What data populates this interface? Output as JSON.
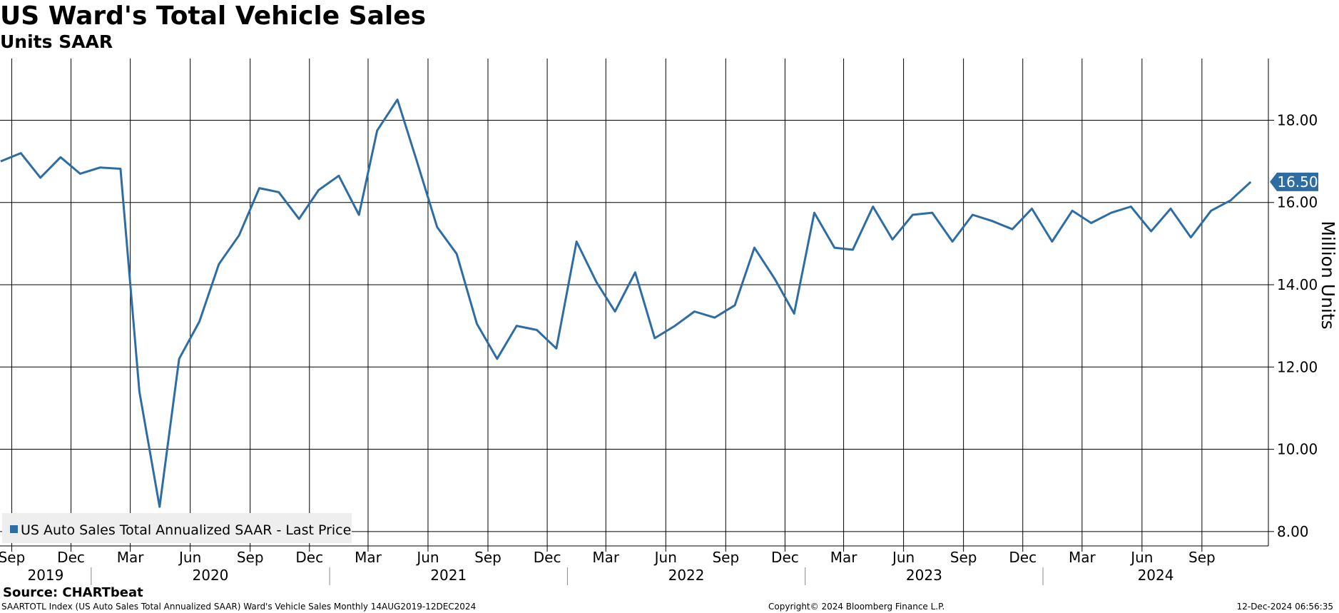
{
  "footer": {
    "source": "Source: CHARTbeat",
    "description": "SAARTOTL Index (US Auto Sales Total Annualized SAAR) Ward's Vehicle Sales  Monthly 14AUG2019-12DEC2024",
    "copyright": "Copyright© 2024 Bloomberg Finance L.P.",
    "timestamp": "12-Dec-2024 06:56:35"
  },
  "colors": {
    "series": "#2e6da4",
    "grid": "#000000",
    "background": "#ffffff",
    "legend_bg": "#eeeeee",
    "last_value_label": "#2e6da4"
  },
  "chart_data": {
    "type": "line",
    "title": "US Ward's Total Vehicle Sales",
    "subtitle": "Units SAAR",
    "ylabel": "Million Units",
    "ylim": [
      7.65,
      19.5
    ],
    "xlim": [
      "2019-08-14",
      "2024-12-12"
    ],
    "yticks": [
      8.0,
      10.0,
      12.0,
      14.0,
      16.0,
      18.0
    ],
    "ytick_labels": [
      "8.00",
      "10.00",
      "12.00",
      "14.00",
      "16.00",
      "18.00"
    ],
    "y_axis_position": "right",
    "grid": true,
    "legend_position": "bottom-left",
    "month_ticks": [
      {
        "date": "2019-09",
        "label": "Sep"
      },
      {
        "date": "2019-12",
        "label": "Dec"
      },
      {
        "date": "2020-03",
        "label": "Mar"
      },
      {
        "date": "2020-06",
        "label": "Jun"
      },
      {
        "date": "2020-09",
        "label": "Sep"
      },
      {
        "date": "2020-12",
        "label": "Dec"
      },
      {
        "date": "2021-03",
        "label": "Mar"
      },
      {
        "date": "2021-06",
        "label": "Jun"
      },
      {
        "date": "2021-09",
        "label": "Sep"
      },
      {
        "date": "2021-12",
        "label": "Dec"
      },
      {
        "date": "2022-03",
        "label": "Mar"
      },
      {
        "date": "2022-06",
        "label": "Jun"
      },
      {
        "date": "2022-09",
        "label": "Sep"
      },
      {
        "date": "2022-12",
        "label": "Dec"
      },
      {
        "date": "2023-03",
        "label": "Mar"
      },
      {
        "date": "2023-06",
        "label": "Jun"
      },
      {
        "date": "2023-09",
        "label": "Sep"
      },
      {
        "date": "2023-12",
        "label": "Dec"
      },
      {
        "date": "2024-03",
        "label": "Mar"
      },
      {
        "date": "2024-06",
        "label": "Jun"
      },
      {
        "date": "2024-09",
        "label": "Sep"
      }
    ],
    "year_labels": [
      "2019",
      "2020",
      "2021",
      "2022",
      "2023",
      "2024"
    ],
    "last_value_label": "16.50",
    "series": [
      {
        "name": "US Auto Sales Total Annualized SAAR - Last Price",
        "x": [
          "2019-08",
          "2019-09",
          "2019-10",
          "2019-11",
          "2019-12",
          "2020-01",
          "2020-02",
          "2020-03",
          "2020-04",
          "2020-05",
          "2020-06",
          "2020-07",
          "2020-08",
          "2020-09",
          "2020-10",
          "2020-11",
          "2020-12",
          "2021-01",
          "2021-02",
          "2021-03",
          "2021-04",
          "2021-05",
          "2021-06",
          "2021-07",
          "2021-08",
          "2021-09",
          "2021-10",
          "2021-11",
          "2021-12",
          "2022-01",
          "2022-02",
          "2022-03",
          "2022-04",
          "2022-05",
          "2022-06",
          "2022-07",
          "2022-08",
          "2022-09",
          "2022-10",
          "2022-11",
          "2022-12",
          "2023-01",
          "2023-02",
          "2023-03",
          "2023-04",
          "2023-05",
          "2023-06",
          "2023-07",
          "2023-08",
          "2023-09",
          "2023-10",
          "2023-11",
          "2023-12",
          "2024-01",
          "2024-02",
          "2024-03",
          "2024-04",
          "2024-05",
          "2024-06",
          "2024-07",
          "2024-08",
          "2024-09",
          "2024-10",
          "2024-11"
        ],
        "values": [
          17.0,
          17.2,
          16.6,
          17.1,
          16.7,
          16.85,
          16.82,
          11.4,
          8.6,
          12.2,
          13.1,
          14.5,
          15.2,
          16.35,
          16.25,
          15.6,
          16.3,
          16.65,
          15.7,
          17.75,
          18.5,
          17.0,
          15.4,
          14.75,
          13.05,
          12.2,
          13.0,
          12.9,
          12.45,
          15.05,
          14.05,
          13.35,
          14.3,
          12.7,
          13.0,
          13.35,
          13.2,
          13.5,
          14.9,
          14.15,
          13.3,
          15.75,
          14.9,
          14.85,
          15.9,
          15.1,
          15.7,
          15.75,
          15.05,
          15.7,
          15.55,
          15.35,
          15.85,
          15.05,
          15.8,
          15.5,
          15.75,
          15.9,
          15.3,
          15.85,
          15.15,
          15.8,
          16.05,
          16.5
        ]
      }
    ]
  }
}
